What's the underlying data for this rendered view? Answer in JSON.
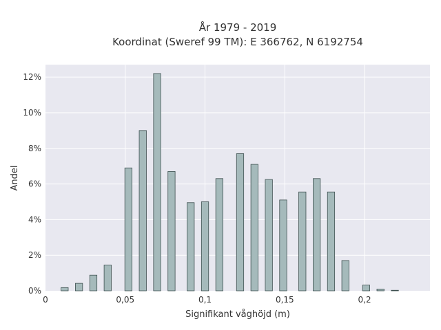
{
  "chart_data": {
    "type": "bar",
    "title": "År 1979 - 2019",
    "subtitle": "Koordinat (Sweref 99 TM): E 366762, N 6192754",
    "xlabel": "Signifikant våghöjd (m)",
    "ylabel": "Andel",
    "xlim": [
      0,
      0.241
    ],
    "ylim": [
      0,
      12.7
    ],
    "x_ticks": [
      {
        "value": 0,
        "label": "0"
      },
      {
        "value": 0.05,
        "label": "0,05"
      },
      {
        "value": 0.1,
        "label": "0,1"
      },
      {
        "value": 0.15,
        "label": "0,15"
      },
      {
        "value": 0.2,
        "label": "0,2"
      }
    ],
    "y_ticks": [
      {
        "value": 0,
        "label": "0%"
      },
      {
        "value": 2,
        "label": "2%"
      },
      {
        "value": 4,
        "label": "4%"
      },
      {
        "value": 6,
        "label": "6%"
      },
      {
        "value": 8,
        "label": "8%"
      },
      {
        "value": 10,
        "label": "10%"
      },
      {
        "value": 12,
        "label": "12%"
      }
    ],
    "bar_width": 0.0045,
    "grid": true,
    "colors": {
      "bar_fill": "#a5babb",
      "bar_stroke": "#3d4f4f",
      "plot_bg": "#e8e8f0",
      "grid": "#ffffff"
    },
    "series": [
      {
        "x": [
          0.012,
          0.021,
          0.03,
          0.039,
          0.052,
          0.061,
          0.07,
          0.079,
          0.091,
          0.1,
          0.109,
          0.122,
          0.131,
          0.14,
          0.149,
          0.161,
          0.17,
          0.179,
          0.188,
          0.201,
          0.21,
          0.219
        ],
        "values": [
          0.18,
          0.42,
          0.88,
          1.45,
          6.9,
          9.0,
          12.2,
          6.7,
          4.95,
          5.0,
          6.3,
          7.7,
          7.1,
          6.25,
          5.1,
          5.55,
          6.3,
          5.55,
          1.7,
          0.32,
          0.1,
          0.03
        ]
      }
    ]
  }
}
